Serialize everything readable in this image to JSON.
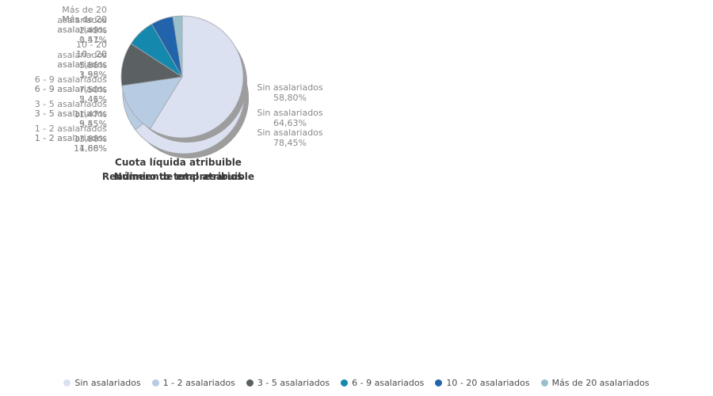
{
  "colors": {
    "background": "#ffffff",
    "shadow": "#9d9d9d",
    "slice_border": "#a3a7ad",
    "label_text": "#8a8a8a",
    "title_text": "#3a3a3a",
    "legend_text": "#4d4d4d"
  },
  "legend": {
    "position": "bottom-center-shared",
    "items": [
      {
        "label": "Sin asalariados",
        "color": "#dce1f1"
      },
      {
        "label": "1 - 2 asalariados",
        "color": "#b7cbe2"
      },
      {
        "label": "3 - 5 asalariados",
        "color": "#5b6063"
      },
      {
        "label": "6 - 9 asalariados",
        "color": "#1588ad"
      },
      {
        "label": "10 - 20 asalariados",
        "color": "#2164ab"
      },
      {
        "label": "Más de 20 asalariados",
        "color": "#9ac0cc"
      }
    ]
  },
  "chart_data": [
    {
      "type": "pie",
      "title": "Número de empresarios",
      "start_angle_deg": 0,
      "direction": "clockwise",
      "slices": [
        {
          "label": "Sin asalariados",
          "value": 78.45,
          "display": "78,45%",
          "label_lines": [
            "Sin asalariados"
          ]
        },
        {
          "label": "1 - 2 asalariados",
          "value": 11.68,
          "display": "11,68%",
          "label_lines": [
            "1 - 2 asalariados"
          ]
        },
        {
          "label": "3 - 5 asalariados",
          "value": 5.45,
          "display": "5,45%",
          "label_lines": [
            "3 - 5 asalariados"
          ]
        },
        {
          "label": "6 - 9 asalariados",
          "value": 2.46,
          "display": "2,46%",
          "label_lines": [
            "6 - 9 asalariados"
          ]
        },
        {
          "label": "10 - 20 asalariados",
          "value": 1.55,
          "display": "1,55%",
          "label_lines": [
            "10 - 20",
            "asalariados"
          ]
        },
        {
          "label": "Más de 20 asalariados",
          "value": 0.41,
          "display": "0,41%",
          "label_lines": [
            "Más de 20",
            "asalariados"
          ]
        }
      ]
    },
    {
      "type": "pie",
      "title": "Rendimiento total atribuible",
      "start_angle_deg": 0,
      "direction": "clockwise",
      "slices": [
        {
          "label": "Sin asalariados",
          "value": 64.63,
          "display": "64,63%",
          "label_lines": [
            "Sin asalariados"
          ]
        },
        {
          "label": "1 - 2 asalariados",
          "value": 14.86,
          "display": "14,86%",
          "label_lines": [
            "1 - 2 asalariados"
          ]
        },
        {
          "label": "3 - 5 asalariados",
          "value": 9.55,
          "display": "9,55%",
          "label_lines": [
            "3 - 5 asalariados"
          ]
        },
        {
          "label": "6 - 9 asalariados",
          "value": 5.41,
          "display": "5,41%",
          "label_lines": [
            "6 - 9 asalariados"
          ]
        },
        {
          "label": "10 - 20 asalariados",
          "value": 3.98,
          "display": "3,98%",
          "label_lines": [
            "10 - 20",
            "asalariados"
          ]
        },
        {
          "label": "Más de 20 asalariados",
          "value": 1.57,
          "display": "1,57%",
          "label_lines": [
            "Más de 20",
            "asalariados"
          ]
        }
      ]
    },
    {
      "type": "pie",
      "title": "Cuota líquida atribuible",
      "start_angle_deg": 0,
      "direction": "clockwise",
      "slices": [
        {
          "label": "Sin asalariados",
          "value": 58.8,
          "display": "58,80%",
          "label_lines": [
            "Sin asalariados"
          ]
        },
        {
          "label": "1 - 2 asalariados",
          "value": 13.88,
          "display": "13,88%",
          "label_lines": [
            "1 - 2 asalariados"
          ]
        },
        {
          "label": "3 - 5 asalariados",
          "value": 11.47,
          "display": "11,47%",
          "label_lines": [
            "3 - 5 asalariados"
          ]
        },
        {
          "label": "6 - 9 asalariados",
          "value": 7.5,
          "display": "7,50%",
          "label_lines": [
            "6 - 9 asalariados"
          ]
        },
        {
          "label": "10 - 20 asalariados",
          "value": 5.86,
          "display": "5,86%",
          "label_lines": [
            "10 - 20",
            "asalariados"
          ]
        },
        {
          "label": "Más de 20 asalariados",
          "value": 2.49,
          "display": "2,49%",
          "label_lines": [
            "Más de 20",
            "asalariados"
          ]
        }
      ]
    }
  ]
}
